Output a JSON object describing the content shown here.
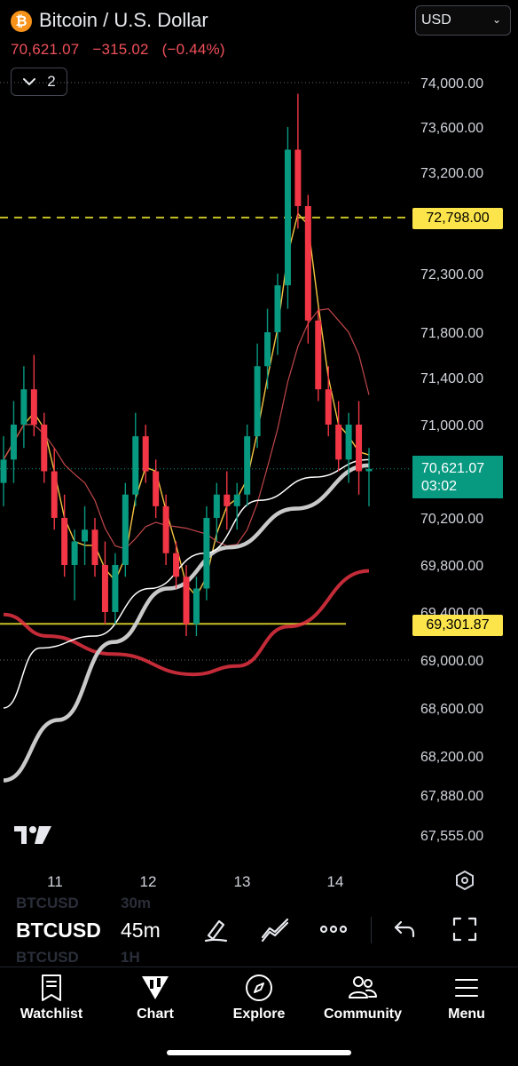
{
  "header": {
    "symbol_title": "Bitcoin / U.S. Dollar",
    "logo_glyph": "₿",
    "last_price": "70,621.07",
    "change": "−315.02",
    "change_pct": "(−0.44%)",
    "indicators_count": "2",
    "currency": "USD",
    "change_color": "#f0505a"
  },
  "price_labels": {
    "level_high": "72,798.00",
    "level_low": "69,301.87",
    "current_price": "70,621.07",
    "countdown": "03:02",
    "level_color": "#fce54a",
    "current_color": "#089981"
  },
  "chart_data": {
    "type": "candlestick",
    "y_ticks": [
      "74,000.00",
      "73,600.00",
      "73,200.00",
      "72,300.00",
      "71,800.00",
      "71,400.00",
      "71,000.00",
      "70,200.00",
      "69,800.00",
      "69,400.00",
      "69,000.00",
      "68,600.00",
      "68,200.00",
      "67,880.00",
      "67,555.00"
    ],
    "x_ticks": [
      "11",
      "12",
      "13",
      "14"
    ],
    "horizontal_levels": [
      72798.0,
      69301.87
    ],
    "last_price": 70621.07,
    "candles_ohlc_sampled": [
      [
        70500,
        70900,
        70300,
        70700
      ],
      [
        70700,
        71200,
        70500,
        71000
      ],
      [
        71000,
        71500,
        70800,
        71300
      ],
      [
        71300,
        71600,
        70900,
        71000
      ],
      [
        71000,
        71100,
        70500,
        70600
      ],
      [
        70600,
        70800,
        70100,
        70200
      ],
      [
        70200,
        70400,
        69700,
        69800
      ],
      [
        69800,
        70100,
        69500,
        70000
      ],
      [
        70000,
        70300,
        69800,
        70100
      ],
      [
        70100,
        70200,
        69700,
        69800
      ],
      [
        69800,
        70000,
        69300,
        69400
      ],
      [
        69400,
        69900,
        69300,
        69800
      ],
      [
        69800,
        70500,
        69700,
        70400
      ],
      [
        70400,
        71100,
        70300,
        70900
      ],
      [
        70900,
        71000,
        70500,
        70600
      ],
      [
        70600,
        70700,
        70200,
        70300
      ],
      [
        70300,
        70400,
        69800,
        69900
      ],
      [
        69900,
        70000,
        69600,
        69700
      ],
      [
        69700,
        69800,
        69200,
        69300
      ],
      [
        69300,
        69700,
        69200,
        69600
      ],
      [
        69600,
        70300,
        69500,
        70200
      ],
      [
        70200,
        70500,
        70000,
        70400
      ],
      [
        70400,
        70600,
        70100,
        70300
      ],
      [
        70300,
        70500,
        70100,
        70400
      ],
      [
        70400,
        71000,
        70300,
        70900
      ],
      [
        70900,
        71700,
        70800,
        71500
      ],
      [
        71500,
        72000,
        71300,
        71800
      ],
      [
        71800,
        72300,
        71600,
        72200
      ],
      [
        72200,
        73600,
        72000,
        73400
      ],
      [
        73400,
        73900,
        72700,
        72900
      ],
      [
        72900,
        73000,
        71700,
        71900
      ],
      [
        71900,
        72000,
        71200,
        71300
      ],
      [
        71300,
        71500,
        70900,
        71000
      ],
      [
        71000,
        71200,
        70600,
        70700
      ],
      [
        70700,
        71100,
        70500,
        71000
      ],
      [
        71000,
        71200,
        70400,
        70600
      ],
      [
        70600,
        70800,
        70300,
        70620
      ]
    ],
    "series": [
      {
        "name": "",
        "color": "#f23645"
      },
      {
        "name": "",
        "color": "#c9c9c9"
      },
      {
        "name": "",
        "color": "#ffffff"
      },
      {
        "name": "",
        "color": "#f5c542"
      },
      {
        "name": "",
        "color": "#c2474b"
      }
    ],
    "y_range": [
      67300,
      74300
    ],
    "grid": false,
    "colors": {
      "up": "#089981",
      "down": "#f23645",
      "level": "#c7c026"
    }
  },
  "toolbar": {
    "ghost_symbol_1": "BTCUSD",
    "ghost_tf_1": "30m",
    "ghost_symbol_2": "BTCUSD",
    "ghost_tf_2": "1H",
    "symbol": "BTCUSD",
    "timeframe": "45m"
  },
  "nav": {
    "items": [
      {
        "label": "Watchlist",
        "icon": "watchlist-icon"
      },
      {
        "label": "Chart",
        "icon": "chart-icon"
      },
      {
        "label": "Explore",
        "icon": "compass-icon"
      },
      {
        "label": "Community",
        "icon": "community-icon"
      },
      {
        "label": "Menu",
        "icon": "menu-icon"
      }
    ]
  }
}
